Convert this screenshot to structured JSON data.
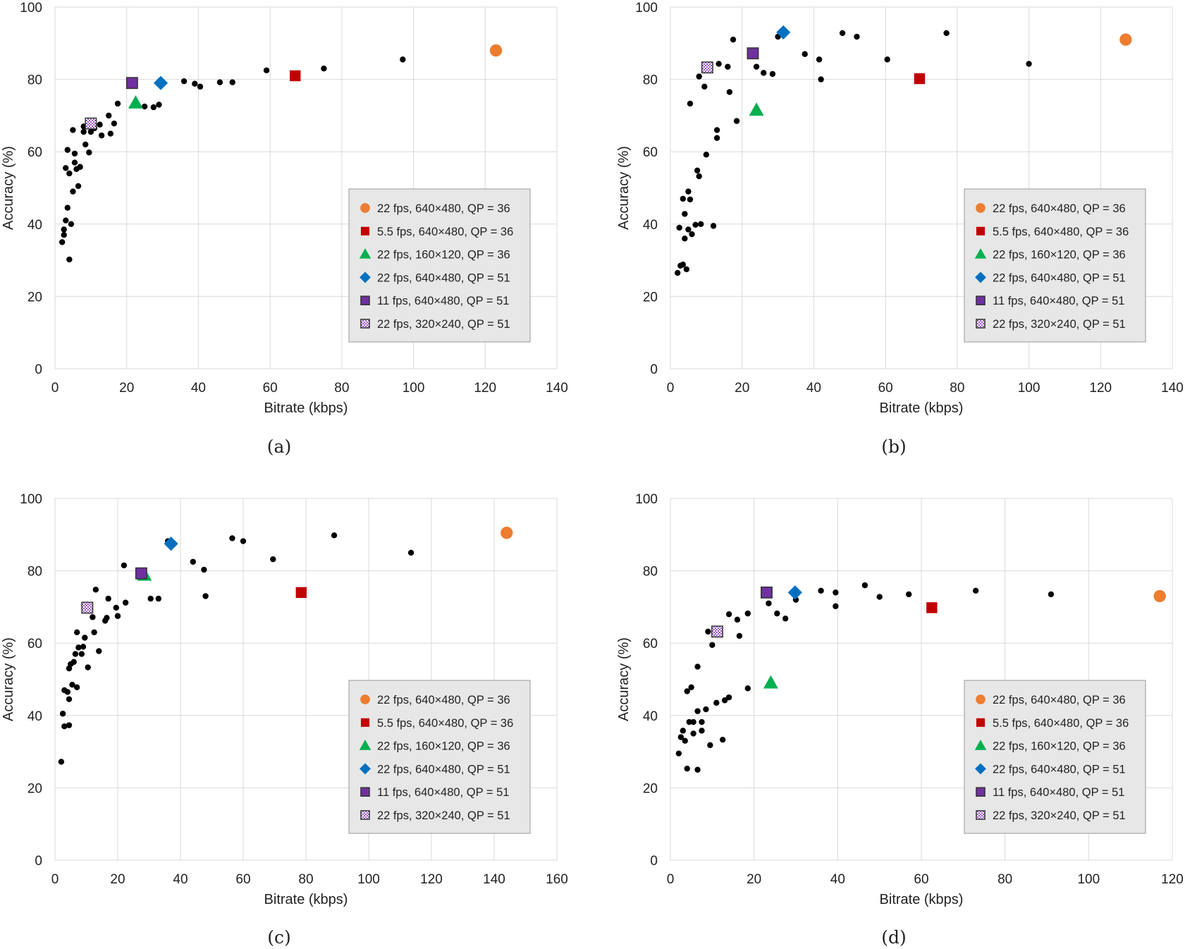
{
  "figure": {
    "captions": [
      "(a)",
      "(b)",
      "(c)",
      "(d)"
    ]
  },
  "legend_items": [
    {
      "label": "22 fps, 640×480, QP = 36",
      "marker": "circle",
      "color": "#ed7d31"
    },
    {
      "label": "5.5 fps, 640×480, QP = 36",
      "marker": "square",
      "color": "#c00000"
    },
    {
      "label": "22 fps, 160×120, QP = 36",
      "marker": "triangle",
      "color": "#00b050"
    },
    {
      "label": "22 fps, 640×480, QP = 51",
      "marker": "diamond",
      "color": "#0070c0"
    },
    {
      "label": "11 fps, 640×480, QP = 51",
      "marker": "square-outlined",
      "color": "#7030a0"
    },
    {
      "label": "22 fps, 320×240, QP = 51",
      "marker": "checkered-square",
      "color": "#7030a0"
    }
  ],
  "chart_data": [
    {
      "type": "scatter",
      "caption": "(a)",
      "xlabel": "Bitrate (kbps)",
      "ylabel": "Accuracy (%)",
      "xlim": [
        0,
        140
      ],
      "ylim": [
        0,
        100
      ],
      "xticks": [
        0,
        20,
        40,
        60,
        80,
        100,
        120,
        140
      ],
      "yticks": [
        0,
        20,
        40,
        60,
        80,
        100
      ],
      "grid": true,
      "legend_position": "lower-right",
      "highlighted": [
        {
          "series": "22 fps, 640×480, QP = 36",
          "x": 123,
          "y": 88
        },
        {
          "series": "5.5 fps, 640×480, QP = 36",
          "x": 67,
          "y": 81
        },
        {
          "series": "22 fps, 160×120, QP = 36",
          "x": 22.5,
          "y": 73.5
        },
        {
          "series": "22 fps, 640×480, QP = 51",
          "x": 29.5,
          "y": 79
        },
        {
          "series": "11 fps, 640×480, QP = 51",
          "x": 21.5,
          "y": 79
        },
        {
          "series": "22 fps, 320×240, QP = 51",
          "x": 10,
          "y": 67.8
        }
      ],
      "others": [
        [
          97,
          85.5
        ],
        [
          75,
          83
        ],
        [
          59,
          82.5
        ],
        [
          49.5,
          79.2
        ],
        [
          46,
          79.2
        ],
        [
          40.5,
          78
        ],
        [
          39,
          78.8
        ],
        [
          36,
          79.5
        ],
        [
          29,
          73
        ],
        [
          27.5,
          72.3
        ],
        [
          25,
          72.5
        ],
        [
          17.5,
          73.3
        ],
        [
          16.5,
          67.8
        ],
        [
          15.5,
          65
        ],
        [
          15,
          70
        ],
        [
          13,
          64.5
        ],
        [
          12.5,
          67.5
        ],
        [
          11,
          66.5
        ],
        [
          10,
          65.5
        ],
        [
          9.5,
          59.8
        ],
        [
          8.5,
          62
        ],
        [
          8,
          67
        ],
        [
          8,
          65.5
        ],
        [
          7,
          55.8
        ],
        [
          6.5,
          50.5
        ],
        [
          6,
          55.2
        ],
        [
          5.5,
          59.5
        ],
        [
          5.5,
          57
        ],
        [
          5,
          66
        ],
        [
          5,
          49
        ],
        [
          4.5,
          40
        ],
        [
          4,
          54
        ],
        [
          3.5,
          60.5
        ],
        [
          3.5,
          44.5
        ],
        [
          3,
          41
        ],
        [
          3,
          55.5
        ],
        [
          2.5,
          38.5
        ],
        [
          2.5,
          37
        ],
        [
          2,
          35
        ],
        [
          4,
          30.2
        ]
      ]
    },
    {
      "type": "scatter",
      "caption": "(b)",
      "xlabel": "Bitrate (kbps)",
      "ylabel": "Accuracy (%)",
      "xlim": [
        0,
        140
      ],
      "ylim": [
        0,
        100
      ],
      "xticks": [
        0,
        20,
        40,
        60,
        80,
        100,
        120,
        140
      ],
      "yticks": [
        0,
        20,
        40,
        60,
        80,
        100
      ],
      "grid": true,
      "legend_position": "lower-right",
      "highlighted": [
        {
          "series": "22 fps, 640×480, QP = 36",
          "x": 127,
          "y": 91
        },
        {
          "series": "5.5 fps, 640×480, QP = 36",
          "x": 69.5,
          "y": 80.2
        },
        {
          "series": "22 fps, 160×120, QP = 36",
          "x": 24,
          "y": 71.5
        },
        {
          "series": "22 fps, 640×480, QP = 51",
          "x": 31.5,
          "y": 93
        },
        {
          "series": "11 fps, 640×480, QP = 51",
          "x": 23,
          "y": 87.2
        },
        {
          "series": "22 fps, 320×240, QP = 51",
          "x": 10.3,
          "y": 83.3
        }
      ],
      "others": [
        [
          100,
          84.3
        ],
        [
          77,
          92.8
        ],
        [
          60.5,
          85.5
        ],
        [
          52,
          91.8
        ],
        [
          48,
          92.8
        ],
        [
          42,
          80
        ],
        [
          41.5,
          85.5
        ],
        [
          37.5,
          87
        ],
        [
          30,
          91.8
        ],
        [
          28.5,
          81.5
        ],
        [
          26,
          81.8
        ],
        [
          24,
          83.5
        ],
        [
          18.5,
          68.5
        ],
        [
          17.5,
          91
        ],
        [
          16.5,
          76.5
        ],
        [
          16,
          83.5
        ],
        [
          13.5,
          84.3
        ],
        [
          13,
          66
        ],
        [
          13,
          63.8
        ],
        [
          12,
          39.5
        ],
        [
          10,
          59.2
        ],
        [
          9.5,
          78
        ],
        [
          8.5,
          40
        ],
        [
          8,
          80.8
        ],
        [
          8,
          53.2
        ],
        [
          7.5,
          54.8
        ],
        [
          7,
          39.8
        ],
        [
          6,
          37.2
        ],
        [
          5.5,
          73.3
        ],
        [
          5.5,
          46.8
        ],
        [
          5,
          49
        ],
        [
          5,
          38.5
        ],
        [
          4.5,
          27.5
        ],
        [
          4,
          42.8
        ],
        [
          4,
          36
        ],
        [
          3.5,
          47
        ],
        [
          3.5,
          28.8
        ],
        [
          2.8,
          28.5
        ],
        [
          2.5,
          39
        ],
        [
          2,
          26.5
        ]
      ]
    },
    {
      "type": "scatter",
      "caption": "(c)",
      "xlabel": "Bitrate (kbps)",
      "ylabel": "Accuracy (%)",
      "xlim": [
        0,
        160
      ],
      "ylim": [
        0,
        100
      ],
      "xticks": [
        0,
        20,
        40,
        60,
        80,
        100,
        120,
        140,
        160
      ],
      "yticks": [
        0,
        20,
        40,
        60,
        80,
        100
      ],
      "grid": true,
      "legend_position": "lower-right",
      "highlighted": [
        {
          "series": "22 fps, 640×480, QP = 36",
          "x": 144,
          "y": 90.5
        },
        {
          "series": "5.5 fps, 640×480, QP = 36",
          "x": 78.5,
          "y": 74
        },
        {
          "series": "22 fps, 160×120, QP = 36",
          "x": 28.5,
          "y": 78.8
        },
        {
          "series": "22 fps, 640×480, QP = 51",
          "x": 37,
          "y": 87.5
        },
        {
          "series": "11 fps, 640×480, QP = 51",
          "x": 27.5,
          "y": 79.3
        },
        {
          "series": "22 fps, 320×240, QP = 51",
          "x": 10.3,
          "y": 69.8
        }
      ],
      "others": [
        [
          113.5,
          85
        ],
        [
          89,
          89.8
        ],
        [
          69.5,
          83.2
        ],
        [
          60,
          88.2
        ],
        [
          56.5,
          89
        ],
        [
          48,
          73
        ],
        [
          47.5,
          80.3
        ],
        [
          44,
          82.5
        ],
        [
          36,
          88.2
        ],
        [
          33,
          72.3
        ],
        [
          30.5,
          72.3
        ],
        [
          22.5,
          71.2
        ],
        [
          22,
          81.5
        ],
        [
          20,
          67.5
        ],
        [
          19.5,
          69.8
        ],
        [
          17,
          72.3
        ],
        [
          16.5,
          67
        ],
        [
          16,
          66.2
        ],
        [
          14,
          57.8
        ],
        [
          13,
          74.8
        ],
        [
          12.5,
          63
        ],
        [
          12,
          67.2
        ],
        [
          10.5,
          53.3
        ],
        [
          9.5,
          61.5
        ],
        [
          9,
          59
        ],
        [
          8.5,
          57
        ],
        [
          7.5,
          58.8
        ],
        [
          7,
          47.8
        ],
        [
          7,
          63
        ],
        [
          6.5,
          57
        ],
        [
          6,
          54.8
        ],
        [
          5.5,
          48.5
        ],
        [
          5,
          54.2
        ],
        [
          4.5,
          53
        ],
        [
          4.5,
          44.5
        ],
        [
          4,
          46.5
        ],
        [
          4.5,
          37.3
        ],
        [
          3,
          47
        ],
        [
          3,
          37
        ],
        [
          2.5,
          40.5
        ],
        [
          2,
          27.2
        ]
      ]
    },
    {
      "type": "scatter",
      "caption": "(d)",
      "xlabel": "Bitrate (kbps)",
      "ylabel": "Accuracy (%)",
      "xlim": [
        0,
        120
      ],
      "ylim": [
        0,
        100
      ],
      "xticks": [
        0,
        20,
        40,
        60,
        80,
        100,
        120
      ],
      "yticks": [
        0,
        20,
        40,
        60,
        80,
        100
      ],
      "grid": true,
      "legend_position": "lower-right",
      "highlighted": [
        {
          "series": "22 fps, 640×480, QP = 36",
          "x": 117,
          "y": 73
        },
        {
          "series": "5.5 fps, 640×480, QP = 36",
          "x": 62.5,
          "y": 69.8
        },
        {
          "series": "22 fps, 160×120, QP = 36",
          "x": 24,
          "y": 49
        },
        {
          "series": "22 fps, 640×480, QP = 51",
          "x": 29.8,
          "y": 74
        },
        {
          "series": "11 fps, 640×480, QP = 51",
          "x": 23,
          "y": 74
        },
        {
          "series": "22 fps, 320×240, QP = 51",
          "x": 11.2,
          "y": 63.2
        }
      ],
      "others": [
        [
          91,
          73.5
        ],
        [
          73,
          74.5
        ],
        [
          57,
          73.5
        ],
        [
          50,
          72.8
        ],
        [
          46.5,
          76
        ],
        [
          39.5,
          70.2
        ],
        [
          39.5,
          74
        ],
        [
          36,
          74.5
        ],
        [
          30,
          72
        ],
        [
          27.5,
          66.8
        ],
        [
          25.5,
          68.2
        ],
        [
          23.5,
          71
        ],
        [
          18.5,
          68.2
        ],
        [
          18.5,
          47.5
        ],
        [
          16.5,
          62
        ],
        [
          16,
          66.5
        ],
        [
          14,
          68
        ],
        [
          14,
          45
        ],
        [
          13,
          44.2
        ],
        [
          12.5,
          33.3
        ],
        [
          11,
          43.5
        ],
        [
          10,
          59.5
        ],
        [
          9.5,
          31.8
        ],
        [
          9,
          63.2
        ],
        [
          8.5,
          41.7
        ],
        [
          7.5,
          38.2
        ],
        [
          7.5,
          35.8
        ],
        [
          6.5,
          53.5
        ],
        [
          6.5,
          25
        ],
        [
          6.5,
          41.2
        ],
        [
          5.5,
          38.2
        ],
        [
          5.5,
          35
        ],
        [
          5,
          47.8
        ],
        [
          4.5,
          38.2
        ],
        [
          4,
          46.7
        ],
        [
          4,
          25.3
        ],
        [
          3.5,
          33
        ],
        [
          3,
          35.8
        ],
        [
          2.5,
          34
        ],
        [
          2,
          29.5
        ]
      ]
    }
  ]
}
